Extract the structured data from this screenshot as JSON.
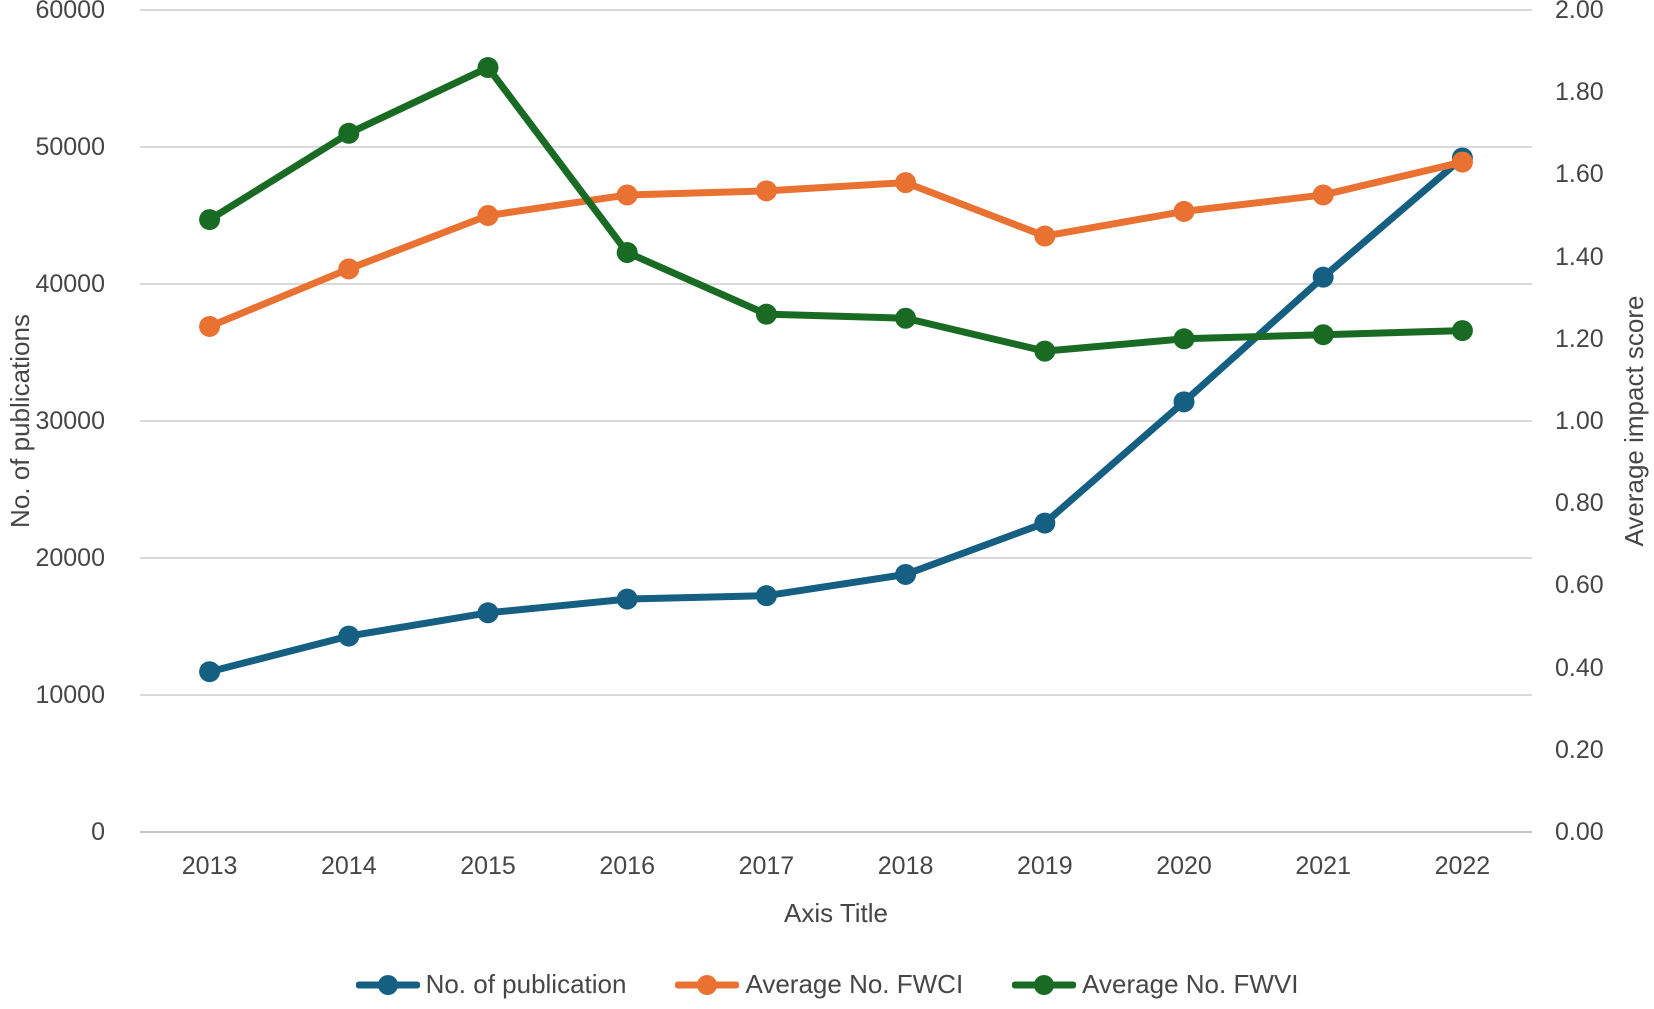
{
  "chart_data": {
    "type": "line",
    "title": "",
    "x_axis_title": "Axis Title",
    "y_left_title": "No. of publications",
    "y_right_title": "Average impact score",
    "categories": [
      "2013",
      "2014",
      "2015",
      "2016",
      "2017",
      "2018",
      "2019",
      "2020",
      "2021",
      "2022"
    ],
    "y_left_range": [
      0,
      60000
    ],
    "y_left_ticks": [
      0,
      10000,
      20000,
      30000,
      40000,
      50000,
      60000
    ],
    "y_right_range": [
      0,
      2
    ],
    "y_right_ticks": [
      "0.00",
      "0.20",
      "0.40",
      "0.60",
      "0.80",
      "1.00",
      "1.20",
      "1.40",
      "1.60",
      "1.80",
      "2.00"
    ],
    "grid": "horizontal",
    "legend_position": "bottom",
    "series": [
      {
        "name": "No. of publication",
        "axis": "left",
        "color": "#156082",
        "values": [
          11700,
          14300,
          16000,
          17000,
          17250,
          18800,
          22550,
          31400,
          40500,
          49200
        ]
      },
      {
        "name": "Average No. FWCI",
        "axis": "right",
        "color": "#E97132",
        "values": [
          1.23,
          1.37,
          1.5,
          1.55,
          1.56,
          1.58,
          1.45,
          1.51,
          1.55,
          1.63
        ]
      },
      {
        "name": "Average No. FWVI",
        "axis": "right",
        "color": "#196B24",
        "values": [
          1.49,
          1.7,
          1.86,
          1.41,
          1.26,
          1.25,
          1.17,
          1.2,
          1.21,
          1.22
        ]
      }
    ],
    "colors": {
      "gridline": "#D9D9D9",
      "axis_line": "#C6C6C6",
      "text": "#464646"
    }
  }
}
